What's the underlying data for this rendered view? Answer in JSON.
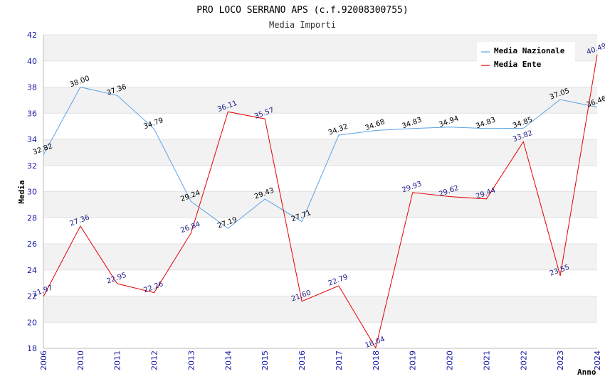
{
  "chart_data": {
    "type": "line",
    "title": "PRO LOCO SERRANO APS (c.f.92008300755)",
    "subtitle": "Media Importi",
    "xlabel": "Anno",
    "ylabel": "Media",
    "categories": [
      "2006",
      "2010",
      "2011",
      "2012",
      "2013",
      "2014",
      "2015",
      "2016",
      "2017",
      "2018",
      "2019",
      "2020",
      "2021",
      "2022",
      "2023",
      "2024"
    ],
    "ylim": [
      18,
      42
    ],
    "yticks": [
      18,
      20,
      22,
      24,
      26,
      28,
      30,
      32,
      34,
      36,
      38,
      40,
      42
    ],
    "legend_position": "top-right",
    "series": [
      {
        "name": "Media Nazionale",
        "color": "#5ba3e6",
        "label_color": "#000000",
        "values": [
          32.82,
          38.0,
          37.36,
          34.79,
          29.24,
          27.19,
          29.43,
          27.71,
          34.32,
          34.68,
          34.83,
          34.94,
          34.83,
          34.85,
          37.05,
          36.46
        ],
        "labels": [
          "32.82",
          "38.00",
          "37.36",
          "34.79",
          "29.24",
          "27.19",
          "29.43",
          "27.71",
          "34.32",
          "34.68",
          "34.83",
          "34.94",
          "34.83",
          "34.85",
          "37.05",
          "36.46"
        ]
      },
      {
        "name": "Media Ente",
        "color": "#e60000",
        "label_color": "#1a1a8c",
        "values": [
          21.97,
          27.36,
          22.95,
          22.26,
          26.84,
          36.11,
          35.57,
          21.6,
          22.79,
          18.04,
          29.93,
          29.62,
          29.44,
          33.82,
          23.55,
          40.49
        ],
        "labels": [
          "21.97",
          "27.36",
          "22.95",
          "22.26",
          "26.84",
          "36.11",
          "35.57",
          "21.60",
          "22.79",
          "18.04",
          "29.93",
          "29.62",
          "29.44",
          "33.82",
          "23.55",
          "40.49"
        ]
      }
    ]
  }
}
